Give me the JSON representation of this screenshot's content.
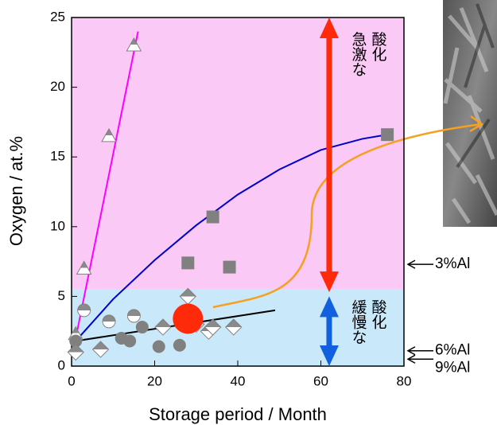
{
  "chart_data": {
    "type": "scatter",
    "xlabel": "Storage period / Month",
    "ylabel": "Oxygen / at.%",
    "xlim": [
      0,
      80
    ],
    "ylim": [
      0,
      25
    ],
    "xticks": [
      0,
      20,
      40,
      60,
      80
    ],
    "yticks": [
      0,
      5,
      10,
      15,
      20,
      25
    ],
    "bands": [
      {
        "from": 0,
        "to": 5.5,
        "color": "#c9e9fb"
      },
      {
        "from": 5.5,
        "to": 25,
        "color": "#fbc9f6"
      }
    ],
    "series": [
      {
        "marker": "triangle",
        "color": "#808080",
        "x": [
          1,
          3,
          9,
          15
        ],
        "values": [
          2.3,
          7,
          16.5,
          23
        ]
      },
      {
        "marker": "square",
        "color": "#808080",
        "x": [
          28,
          34,
          38,
          76
        ],
        "values": [
          7.4,
          10.7,
          7.1,
          16.6
        ]
      },
      {
        "marker": "circle",
        "color": "#808080",
        "x": [
          1,
          12,
          14,
          17,
          21,
          26
        ],
        "values": [
          1.8,
          2.0,
          1.8,
          2.8,
          1.4,
          1.5
        ]
      },
      {
        "marker": "half-circle",
        "color": "#808080",
        "x": [
          3,
          9,
          15
        ],
        "values": [
          4.0,
          3.2,
          3.6
        ]
      },
      {
        "marker": "diamond",
        "color": "#808080",
        "x": [
          1,
          7,
          22,
          28,
          30,
          33,
          34,
          39
        ],
        "values": [
          1.0,
          1.2,
          2.8,
          5.0,
          3.0,
          2.5,
          2.8,
          2.8
        ]
      },
      {
        "marker": "big-circle",
        "color": "#ff2a0a",
        "x": [
          28
        ],
        "values": [
          3.4
        ]
      }
    ],
    "fits": [
      {
        "color": "#ff00ff",
        "x": [
          1,
          16
        ],
        "values": [
          2,
          24
        ]
      },
      {
        "color": "#0000cc",
        "x": [
          1,
          10,
          20,
          30,
          40,
          50,
          60,
          70,
          76
        ],
        "values": [
          1.8,
          4.8,
          7.6,
          10.1,
          12.3,
          14.1,
          15.5,
          16.3,
          16.6
        ]
      },
      {
        "color": "#000000",
        "x": [
          1,
          49
        ],
        "values": [
          1.8,
          4.0
        ]
      }
    ],
    "arrows": [
      {
        "x": 62,
        "from": 5.3,
        "to": 25,
        "color": "#ff2a0a",
        "label": [
          "急激な",
          "酸化"
        ],
        "label_y": 24
      },
      {
        "x": 62,
        "from": 0,
        "to": 5,
        "color": "#1060e0",
        "label": [
          "緩慢な",
          "酸化"
        ],
        "label_y": 4.8
      }
    ],
    "annotations": [
      {
        "text": "3%Al",
        "y": 7.3
      },
      {
        "text": "6%Al",
        "y": 1.1
      },
      {
        "text": "9%Al",
        "y": 0.5
      }
    ]
  }
}
